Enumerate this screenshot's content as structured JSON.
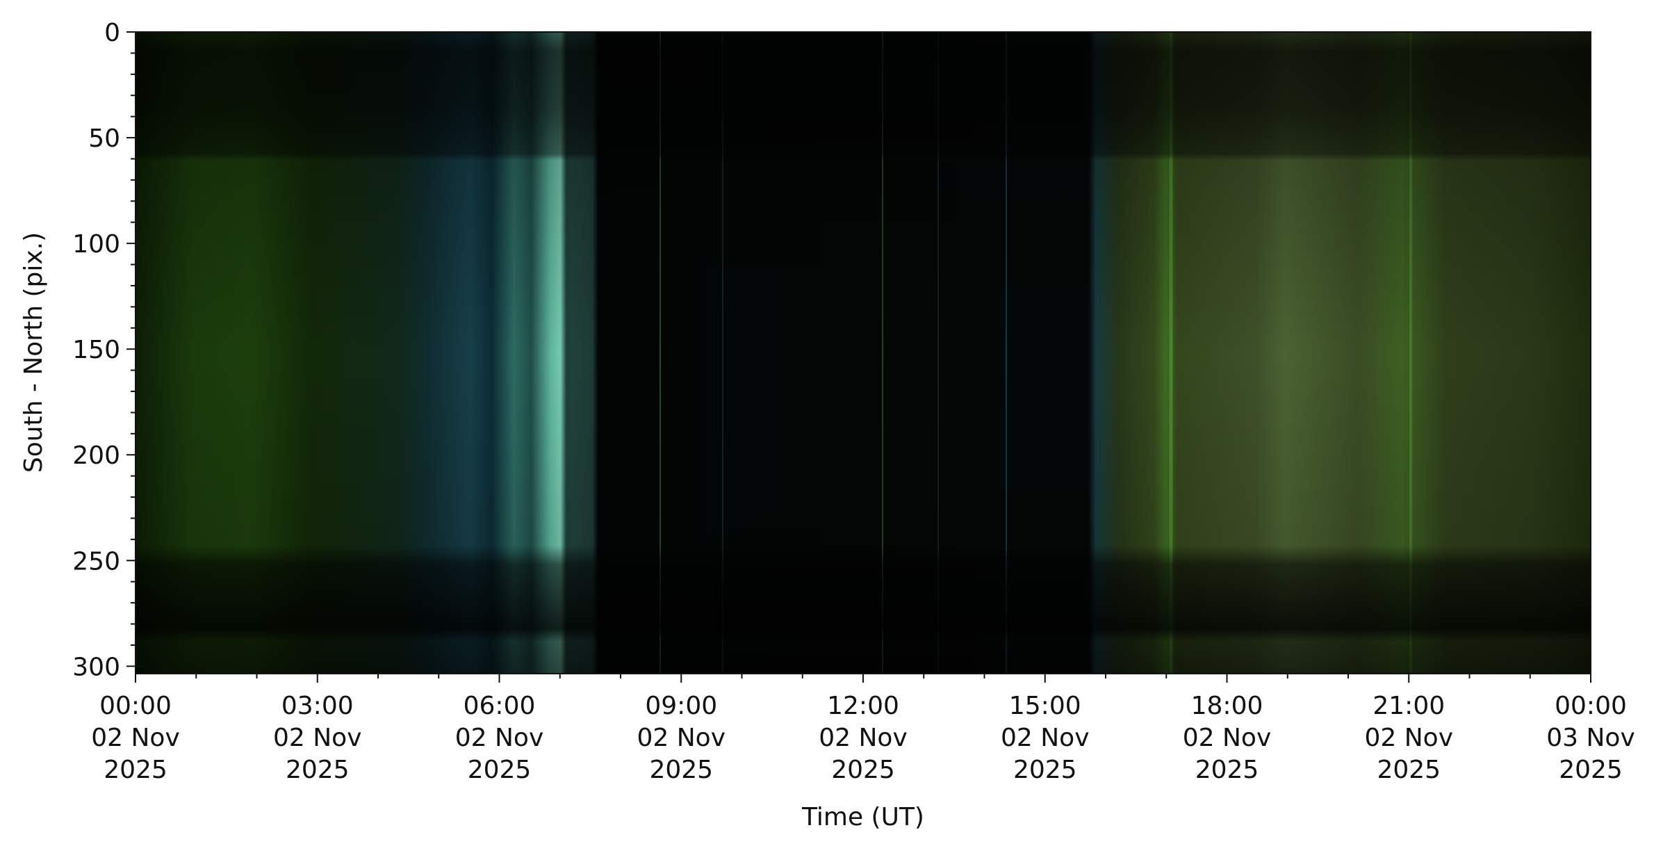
{
  "chart_data": {
    "type": "image",
    "xlabel": "Time (UT)",
    "ylabel": "South - North (pix.)",
    "xlim": [
      "2025-11-02T00:00",
      "2025-11-03T00:00"
    ],
    "xticks": [
      {
        "value": "2025-11-02T00:00",
        "label": [
          "00:00",
          "02 Nov",
          "2025"
        ]
      },
      {
        "value": "2025-11-02T03:00",
        "label": [
          "03:00",
          "02 Nov",
          "2025"
        ]
      },
      {
        "value": "2025-11-02T06:00",
        "label": [
          "06:00",
          "02 Nov",
          "2025"
        ]
      },
      {
        "value": "2025-11-02T09:00",
        "label": [
          "09:00",
          "02 Nov",
          "2025"
        ]
      },
      {
        "value": "2025-11-02T12:00",
        "label": [
          "12:00",
          "02 Nov",
          "2025"
        ]
      },
      {
        "value": "2025-11-02T15:00",
        "label": [
          "15:00",
          "02 Nov",
          "2025"
        ]
      },
      {
        "value": "2025-11-02T18:00",
        "label": [
          "18:00",
          "02 Nov",
          "2025"
        ]
      },
      {
        "value": "2025-11-02T21:00",
        "label": [
          "21:00",
          "02 Nov",
          "2025"
        ]
      },
      {
        "value": "2025-11-03T00:00",
        "label": [
          "00:00",
          "03 Nov",
          "2025"
        ]
      }
    ],
    "xminorticks": [
      "2025-11-02T01:00",
      "2025-11-02T02:00",
      "2025-11-02T04:00",
      "2025-11-02T05:00",
      "2025-11-02T07:00",
      "2025-11-02T08:00",
      "2025-11-02T10:00",
      "2025-11-02T11:00",
      "2025-11-02T13:00",
      "2025-11-02T14:00",
      "2025-11-02T16:00",
      "2025-11-02T17:00",
      "2025-11-02T19:00",
      "2025-11-02T20:00",
      "2025-11-02T22:00",
      "2025-11-02T23:00"
    ],
    "ylim": [
      303.5,
      0
    ],
    "yticks": [
      0,
      50,
      100,
      150,
      200,
      250,
      300
    ],
    "yminorticks": [
      10,
      20,
      30,
      40,
      60,
      70,
      80,
      90,
      110,
      120,
      130,
      140,
      160,
      170,
      180,
      190,
      210,
      220,
      230,
      240,
      260,
      270,
      280,
      290
    ]
  }
}
